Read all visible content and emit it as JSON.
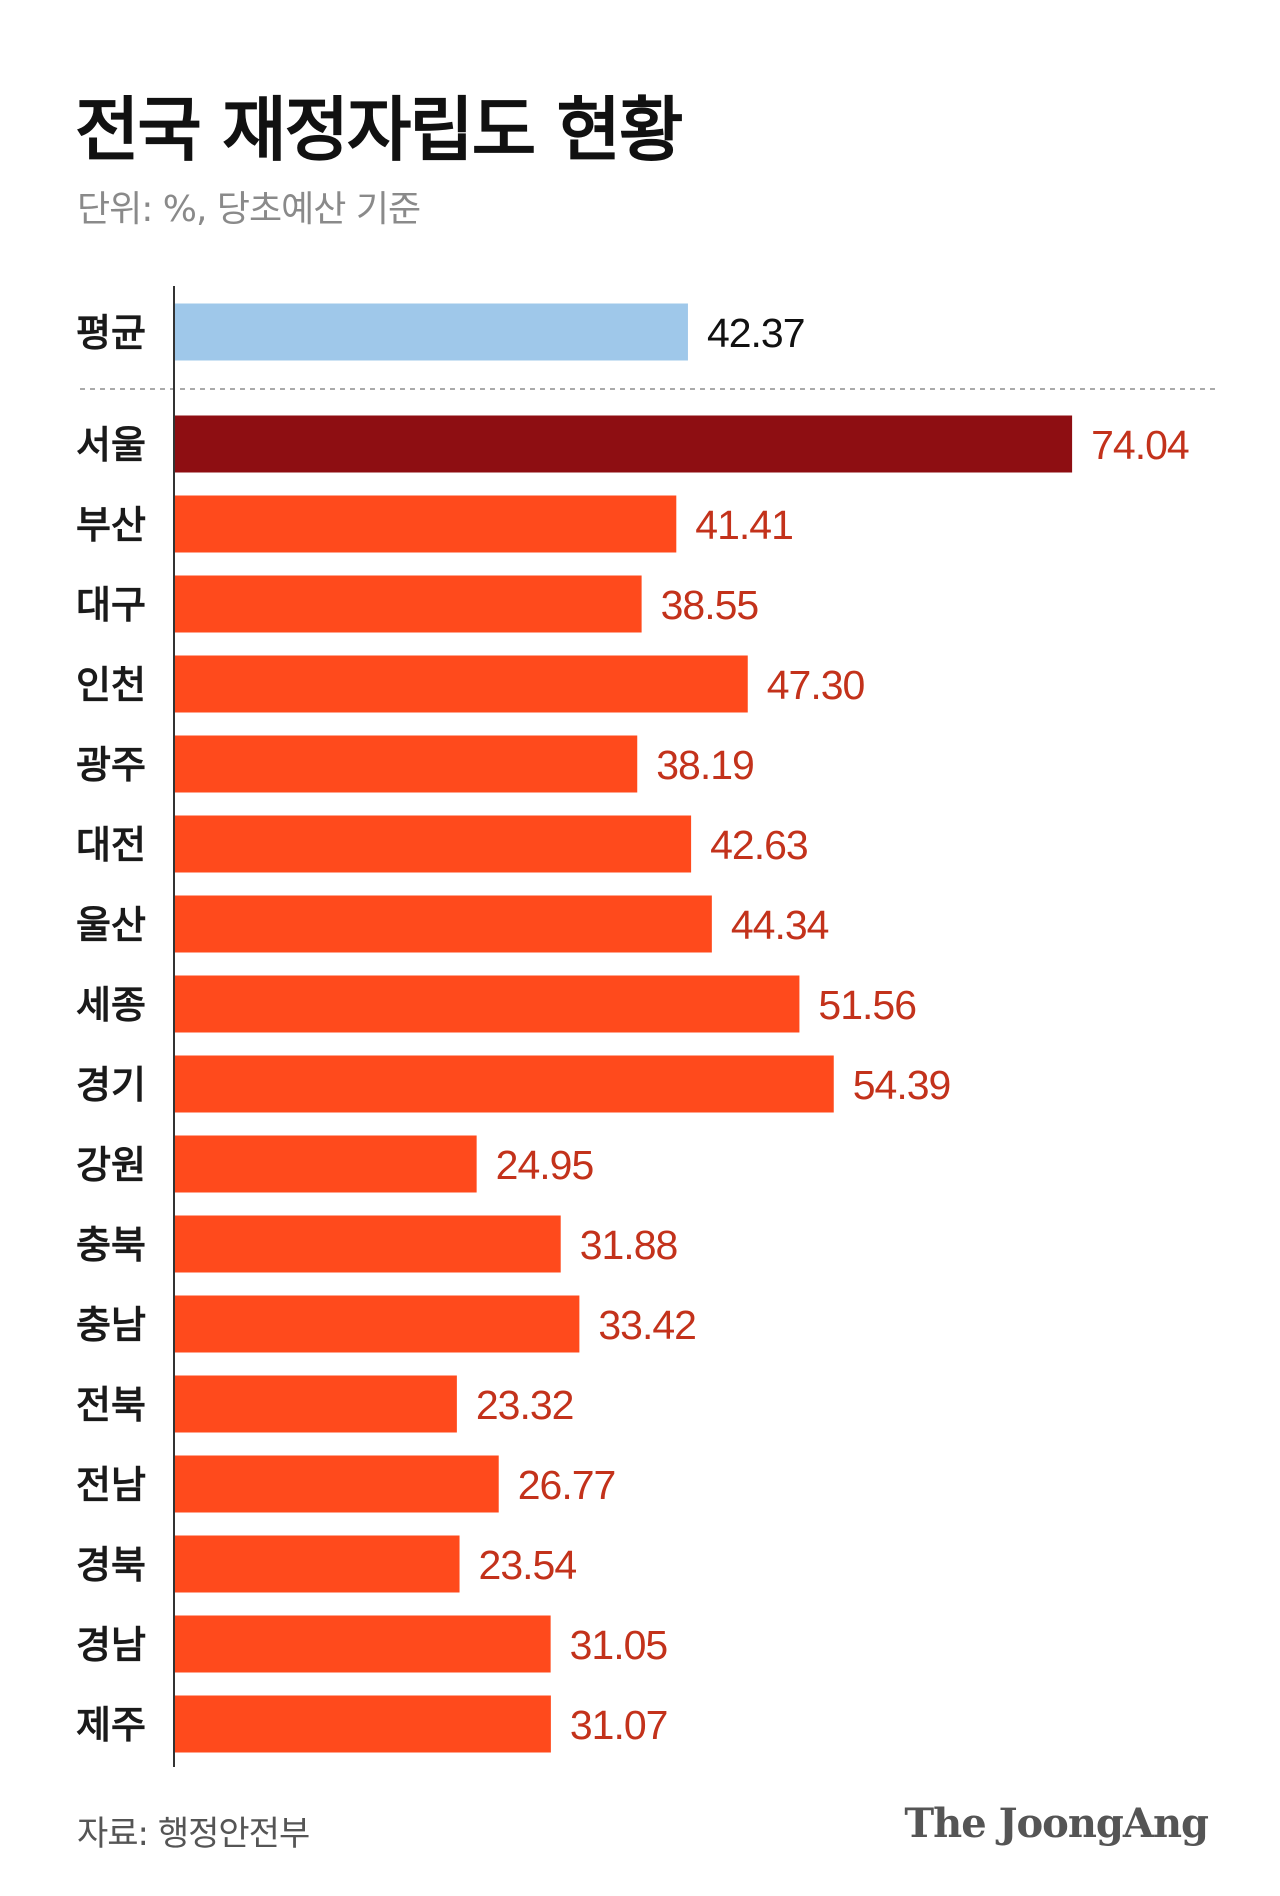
{
  "header": {
    "title": "전국 재정자립도 현황",
    "subtitle": "단위: %, 당초예산 기준"
  },
  "footer": {
    "source": "자료: 행정안전부",
    "logo": "The JoongAng"
  },
  "colors": {
    "average": "#9fc8ea",
    "highlight": "#8e0e12",
    "bar": "#ff4a1c",
    "value_text_region": "#c3321b",
    "value_text_average": "#111111",
    "divider": "#aaaaaa",
    "axis": "#333333"
  },
  "chart_data": {
    "type": "bar",
    "orientation": "horizontal",
    "xlim": [
      0,
      80
    ],
    "average": {
      "category": "평균",
      "value": 42.37,
      "label": "42.37"
    },
    "categories": [
      "서울",
      "부산",
      "대구",
      "인천",
      "광주",
      "대전",
      "울산",
      "세종",
      "경기",
      "강원",
      "충북",
      "충남",
      "전북",
      "전남",
      "경북",
      "경남",
      "제주"
    ],
    "values": [
      74.04,
      41.41,
      38.55,
      47.3,
      38.19,
      42.63,
      44.34,
      51.56,
      54.39,
      24.95,
      31.88,
      33.42,
      23.32,
      26.77,
      23.54,
      31.05,
      31.07
    ],
    "value_labels": [
      "74.04",
      "41.41",
      "38.55",
      "47.30",
      "38.19",
      "42.63",
      "44.34",
      "51.56",
      "54.39",
      "24.95",
      "31.88",
      "33.42",
      "23.32",
      "26.77",
      "23.54",
      "31.05",
      "31.07"
    ],
    "highlight_category": "서울"
  }
}
